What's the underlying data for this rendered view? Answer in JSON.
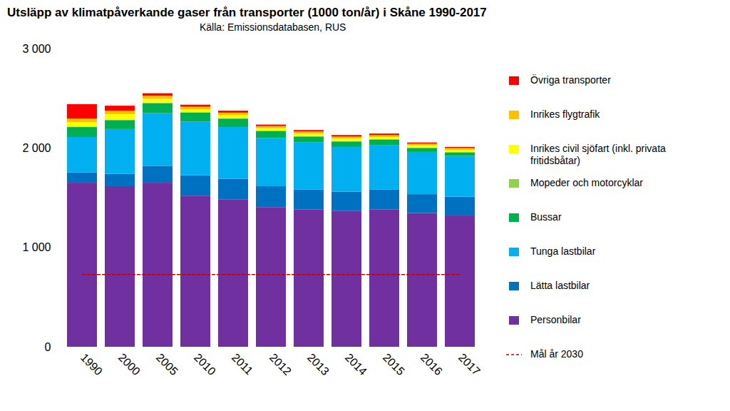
{
  "chart_data": {
    "type": "bar",
    "stacked": true,
    "title": "Utsläpp av klimatpåverkande gaser från transporter (1000 ton/år) i Skåne 1990-2017",
    "subtitle": "Källa: Emissionsdatabasen, RUS",
    "categories": [
      "1990",
      "2000",
      "2005",
      "2010",
      "2011",
      "2012",
      "2013",
      "2014",
      "2015",
      "2016",
      "2017"
    ],
    "ylim": [
      0,
      3000
    ],
    "yticks": [
      {
        "value": 0,
        "label": "0"
      },
      {
        "value": 1000,
        "label": "1 000"
      },
      {
        "value": 2000,
        "label": "2 000"
      },
      {
        "value": 3000,
        "label": "3 000"
      }
    ],
    "grid": false,
    "legend": "right",
    "series": [
      {
        "name": "Personbilar",
        "color": "#7030a0",
        "values": [
          1650,
          1615,
          1650,
          1520,
          1480,
          1405,
          1380,
          1365,
          1380,
          1345,
          1320
        ]
      },
      {
        "name": "Lätta lastbilar",
        "color": "#0070c0",
        "values": [
          105,
          125,
          170,
          205,
          210,
          210,
          200,
          195,
          200,
          190,
          190
        ]
      },
      {
        "name": "Tunga lastbilar",
        "color": "#00b0f0",
        "values": [
          355,
          450,
          530,
          540,
          520,
          485,
          475,
          450,
          450,
          425,
          410
        ]
      },
      {
        "name": "Bussar",
        "color": "#00b050",
        "values": [
          100,
          90,
          100,
          90,
          85,
          70,
          60,
          55,
          55,
          40,
          35
        ]
      },
      {
        "name": "Mopeder och motorcyklar",
        "color": "#92d050",
        "values": [
          5,
          5,
          5,
          5,
          5,
          5,
          5,
          5,
          5,
          5,
          5
        ]
      },
      {
        "name": "Inrikes civil sjöfart (inkl. privata fritidsbåtar)",
        "color": "#ffff00",
        "values": [
          45,
          55,
          40,
          30,
          30,
          25,
          25,
          25,
          20,
          20,
          20
        ]
      },
      {
        "name": "Inrikes flygtrafik",
        "color": "#ffc000",
        "values": [
          35,
          35,
          30,
          25,
          25,
          20,
          20,
          20,
          20,
          20,
          20
        ]
      },
      {
        "name": "Övriga transporter",
        "color": "#ff0000",
        "values": [
          145,
          50,
          25,
          20,
          20,
          15,
          15,
          15,
          15,
          10,
          10
        ]
      },
      {
        "name": "Mål år 2030",
        "type": "line",
        "line_style": "dashed",
        "color": "#c00000",
        "values": [
          730,
          730,
          730,
          730,
          730,
          730,
          730,
          730,
          730,
          730,
          730
        ]
      }
    ]
  }
}
